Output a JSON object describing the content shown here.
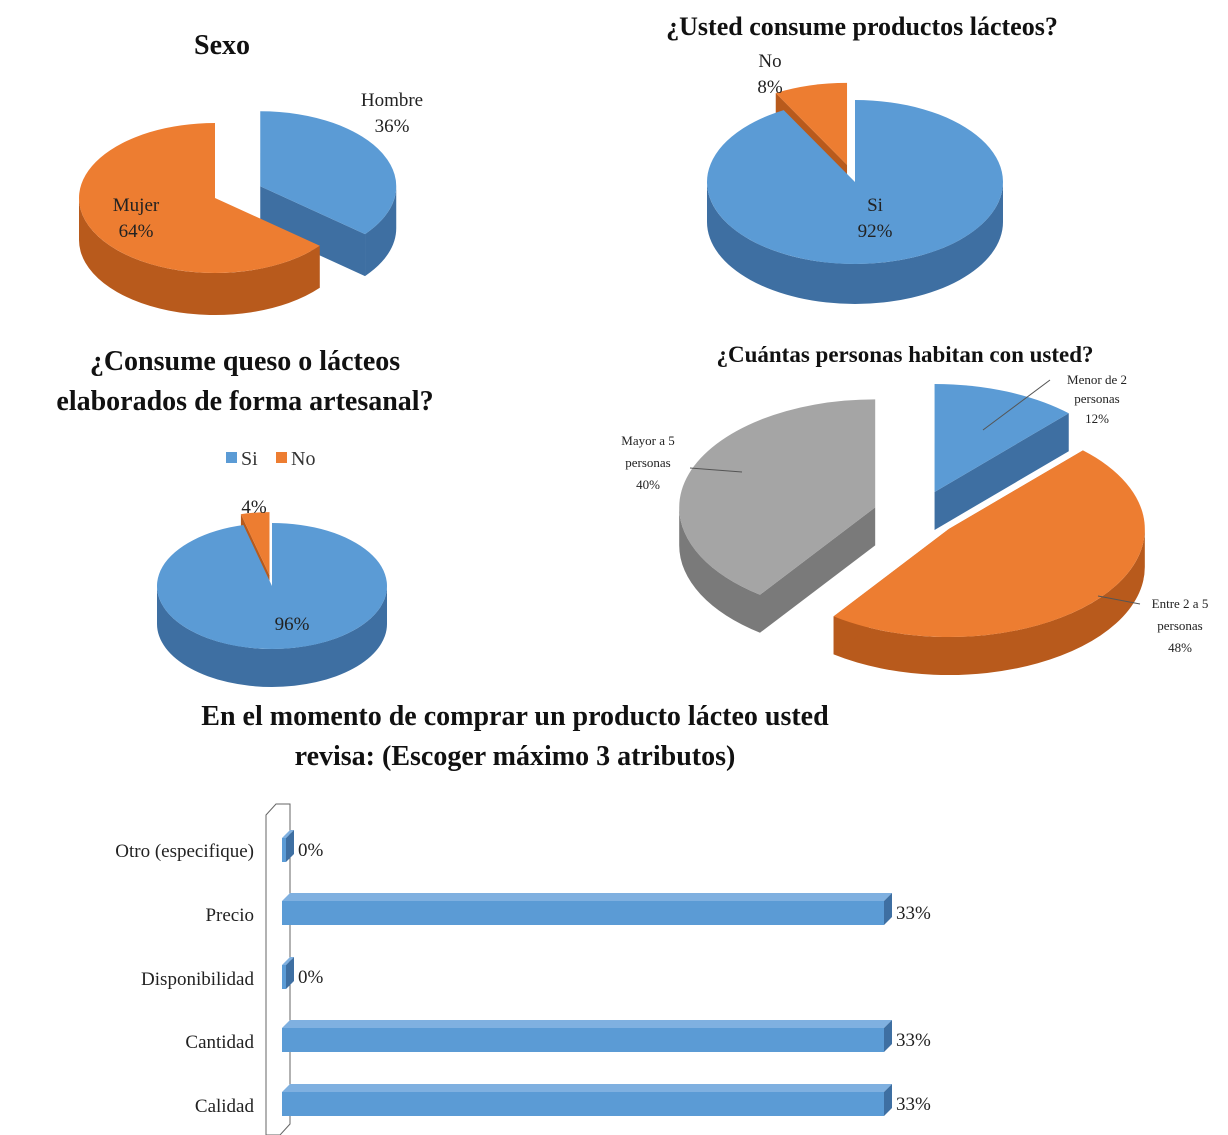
{
  "colors": {
    "blue": "#5b9bd5",
    "blue_dark": "#3e6fa2",
    "orange": "#ed7d31",
    "orange_dark": "#b85a1c",
    "gray": "#a5a5a5",
    "gray_dark": "#7a7a7a"
  },
  "chart_data": [
    {
      "type": "pie",
      "title": "Sexo",
      "slices": [
        {
          "label": "Hombre",
          "value": 36,
          "display": "36%"
        },
        {
          "label": "Mujer",
          "value": 64,
          "display": "64%"
        }
      ]
    },
    {
      "type": "pie",
      "title": "¿Usted consume productos lácteos?",
      "slices": [
        {
          "label": "Si",
          "value": 92,
          "display": "92%"
        },
        {
          "label": "No",
          "value": 8,
          "display": "8%"
        }
      ]
    },
    {
      "type": "pie",
      "title_lines": [
        "¿Consume queso o lácteos",
        "elaborados de forma artesanal?"
      ],
      "legend": [
        "Si",
        "No"
      ],
      "legend_position": "top",
      "slices": [
        {
          "label": "Si",
          "value": 96,
          "display": "96%"
        },
        {
          "label": "No",
          "value": 4,
          "display": "4%"
        }
      ]
    },
    {
      "type": "pie",
      "title": "¿Cuántas personas habitan con usted?",
      "slices": [
        {
          "label_lines": [
            "Menor de 2",
            "personas"
          ],
          "value": 12,
          "display": "12%"
        },
        {
          "label_lines": [
            "Entre 2  a 5",
            "personas"
          ],
          "value": 48,
          "display": "48%"
        },
        {
          "label_lines": [
            "Mayor a 5",
            "personas"
          ],
          "value": 40,
          "display": "40%"
        }
      ]
    },
    {
      "type": "bar",
      "orientation": "horizontal",
      "title_lines": [
        "En el momento de comprar un producto lácteo usted",
        "revisa: (Escoger máximo 3 atributos)"
      ],
      "categories": [
        "Otro (especifique)",
        "Precio",
        "Disponibilidad",
        "Cantidad",
        "Calidad"
      ],
      "values": [
        0,
        33,
        0,
        33,
        33
      ],
      "value_labels": [
        "0%",
        "33%",
        "0%",
        "33%",
        "33%"
      ],
      "xlim": [
        0,
        33
      ]
    }
  ]
}
